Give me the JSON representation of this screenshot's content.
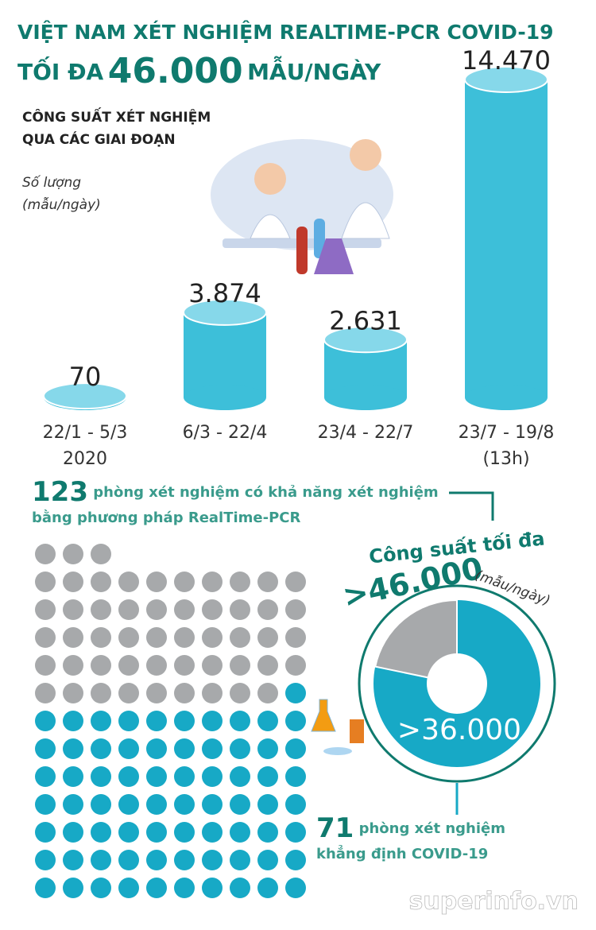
{
  "header": {
    "title_line1": "VIỆT NAM XÉT NGHIỆM REALTIME-PCR COVID-19",
    "title_line2_prefix": "TỐI ĐA",
    "title_line2_number": "46.000",
    "title_line2_suffix": "MẪU/NGÀY"
  },
  "chart_data": {
    "type": "bar",
    "title": [
      "CÔNG SUẤT XÉT NGHIỆM",
      "QUA CÁC GIAI ĐOẠN"
    ],
    "y_label": [
      "Số lượng",
      "(mẫu/ngày)"
    ],
    "categories": [
      [
        "22/1 - 5/3",
        "2020"
      ],
      [
        "6/3 - 22/4"
      ],
      [
        "23/4 - 22/7"
      ],
      [
        "23/7 - 19/8",
        "(13h)"
      ]
    ],
    "values": [
      70,
      3874,
      2631,
      14470
    ],
    "value_labels": [
      "70",
      "3.874",
      "2.631",
      "14.470"
    ],
    "color": "#3dbfd9"
  },
  "labs": {
    "total": 123,
    "total_text": [
      "phòng xét nghiệm có khả năng xét nghiệm",
      "bằng phương pháp RealTime-PCR"
    ],
    "confirmed": 71,
    "confirmed_text": [
      "phòng xét nghiệm",
      "khẳng định COVID-19"
    ],
    "gray_color": "#a7a9ab",
    "teal_color": "#17a9c6"
  },
  "capacity": {
    "title": "Công suất tối đa",
    "max": 46000,
    "max_label": ">46.000",
    "unit": "(mẫu/ngày)",
    "confirmed": 36000,
    "confirmed_label": ">36.000"
  },
  "watermark": "superinfo.vn"
}
